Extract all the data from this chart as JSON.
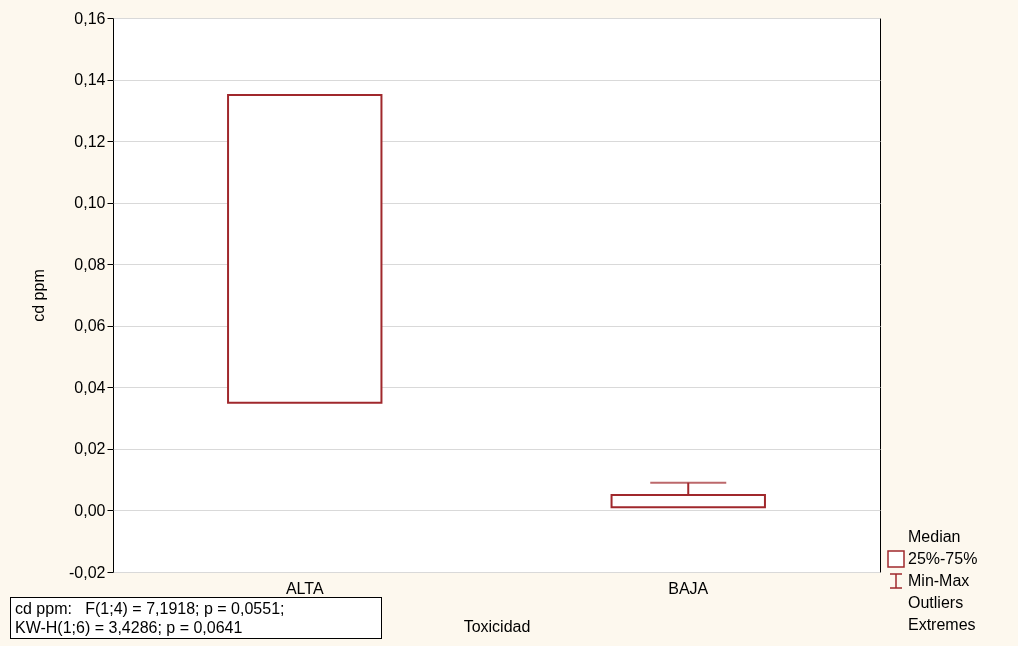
{
  "chart_data": {
    "type": "box",
    "xlabel": "Toxicidad",
    "ylabel": "cd ppm",
    "categories": [
      "ALTA",
      "BAJA"
    ],
    "boxes": [
      {
        "low": 0.035,
        "q1": 0.035,
        "median": null,
        "q3": 0.135,
        "high": 0.135
      },
      {
        "low": 0.001,
        "q1": 0.001,
        "median": null,
        "q3": 0.005,
        "high": 0.009
      }
    ],
    "color": "#a0282c",
    "ylim": [
      -0.02,
      0.16
    ],
    "yticks": [
      {
        "value": -0.02,
        "label": "-0,02"
      },
      {
        "value": 0,
        "label": "0,00"
      },
      {
        "value": 0.02,
        "label": "0,02"
      },
      {
        "value": 0.04,
        "label": "0,04"
      },
      {
        "value": 0.06,
        "label": "0,06"
      },
      {
        "value": 0.08,
        "label": "0,08"
      },
      {
        "value": 0.1,
        "label": "0,10"
      },
      {
        "value": 0.12,
        "label": "0,12"
      },
      {
        "value": 0.14,
        "label": "0,14"
      },
      {
        "value": 0.16,
        "label": "0,16"
      }
    ],
    "grid": "y",
    "annotations": [
      "cd ppm:   F(1;4) = 7,1918; p = 0,0551;",
      "KW-H(1;6) = 3,4286; p = 0,0641",
      "Median",
      "25%-75%",
      "Min-Max",
      "Outliers",
      "Extremes"
    ]
  }
}
